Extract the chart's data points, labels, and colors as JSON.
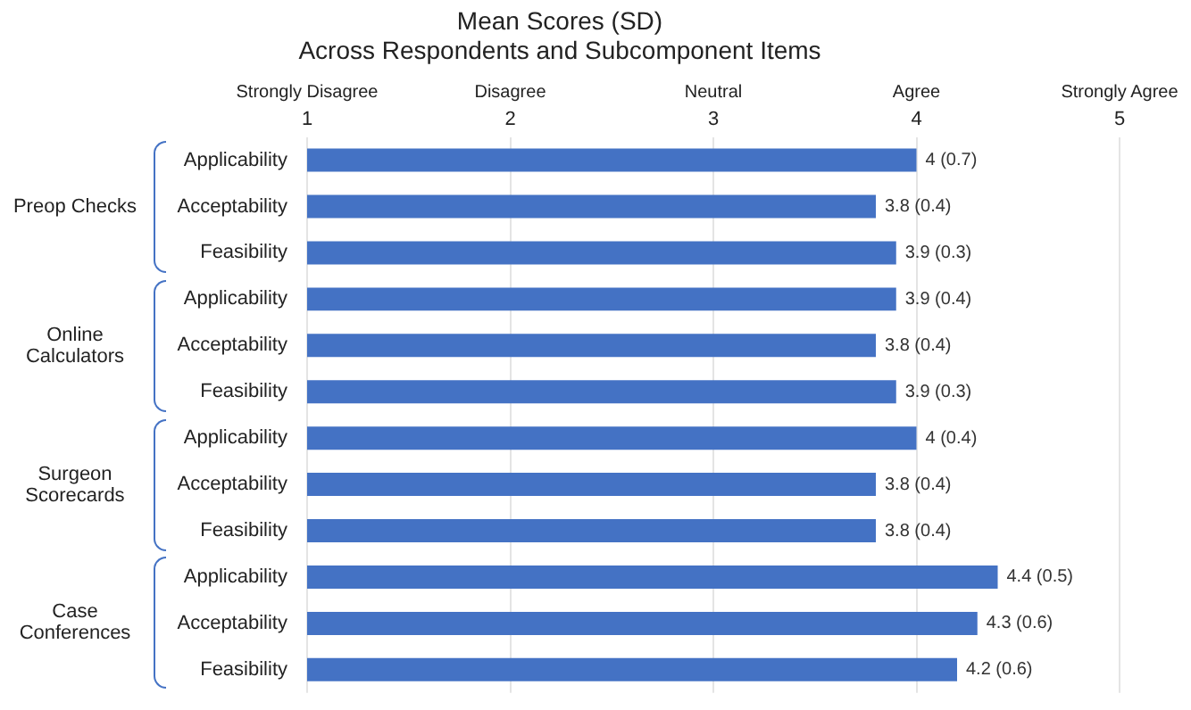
{
  "chart_data": {
    "type": "bar",
    "orientation": "horizontal",
    "title": "Mean Scores (SD)\nAcross Respondents and Subcomponent Items",
    "categories": [
      "Applicability",
      "Acceptability",
      "Feasibility",
      "Applicability",
      "Acceptability",
      "Feasibility",
      "Applicability",
      "Acceptability",
      "Feasibility",
      "Applicability",
      "Acceptability",
      "Feasibility"
    ],
    "values": [
      4,
      3.8,
      3.9,
      3.9,
      3.8,
      3.9,
      4,
      3.8,
      3.8,
      4.4,
      4.3,
      4.2
    ],
    "value_labels": [
      "4 (0.7)",
      "3.8 (0.4)",
      "3.9 (0.3)",
      "3.9 (0.4)",
      "3.8 (0.4)",
      "3.9 (0.3)",
      "4 (0.4)",
      "3.8 (0.4)",
      "3.8 (0.4)",
      "4.4 (0.5)",
      "4.3 (0.6)",
      "4.2 (0.6)"
    ],
    "color": "#4472c4",
    "xlim": [
      1,
      5
    ],
    "xticks": [
      1,
      2,
      3,
      4,
      5
    ],
    "grid": "x",
    "legend": false,
    "annotations": [
      "Preop Checks",
      "Online Calculators",
      "Surgeon Scorecards",
      "Case Conferences",
      "Strongly Disagree",
      "Disagree",
      "Neutral",
      "Agree",
      "Strongly Agree"
    ]
  }
}
